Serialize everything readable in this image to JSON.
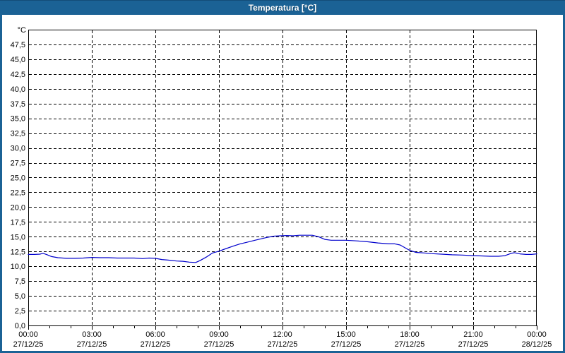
{
  "window": {
    "title": "Temperatura [°C]"
  },
  "colors": {
    "frame": "#1b6295",
    "titlebar_text": "#ffffff",
    "plot_background": "#ffffff",
    "grid": "#000000",
    "axis": "#000000",
    "series_line": "#0000cc"
  },
  "chart_data": {
    "type": "line",
    "title": "Temperatura [°C]",
    "ylabel": "°C",
    "xlabel": "",
    "ylim": [
      0,
      50
    ],
    "y_tick_step": 2.5,
    "y_tick_labels": [
      "0,0",
      "2,5",
      "5,0",
      "7,5",
      "10,0",
      "12,5",
      "15,0",
      "17,5",
      "20,0",
      "22,5",
      "25,0",
      "27,5",
      "30,0",
      "32,5",
      "35,0",
      "37,5",
      "40,0",
      "42,5",
      "45,0",
      "47,5"
    ],
    "x_hours_range": [
      0,
      24
    ],
    "x_minor_tick_every_hours": 1,
    "x_major_ticks": [
      {
        "hour": 0,
        "time": "00:00",
        "date": "27/12/25"
      },
      {
        "hour": 3,
        "time": "03:00",
        "date": "27/12/25"
      },
      {
        "hour": 6,
        "time": "06:00",
        "date": "27/12/25"
      },
      {
        "hour": 9,
        "time": "09:00",
        "date": "27/12/25"
      },
      {
        "hour": 12,
        "time": "12:00",
        "date": "27/12/25"
      },
      {
        "hour": 15,
        "time": "15:00",
        "date": "27/12/25"
      },
      {
        "hour": 18,
        "time": "18:00",
        "date": "27/12/25"
      },
      {
        "hour": 21,
        "time": "21:00",
        "date": "27/12/25"
      },
      {
        "hour": 24,
        "time": "00:00",
        "date": "28/12/25"
      }
    ],
    "grid": "dashed",
    "legend_position": "none",
    "series": [
      {
        "name": "Temperatura",
        "color": "#0000cc",
        "points": [
          [
            0.0,
            12.0
          ],
          [
            0.3,
            12.0
          ],
          [
            0.55,
            12.05
          ],
          [
            0.7,
            12.2
          ],
          [
            0.9,
            11.95
          ],
          [
            1.1,
            11.65
          ],
          [
            1.4,
            11.45
          ],
          [
            1.8,
            11.35
          ],
          [
            2.2,
            11.35
          ],
          [
            2.6,
            11.4
          ],
          [
            3.0,
            11.5
          ],
          [
            3.4,
            11.45
          ],
          [
            3.8,
            11.45
          ],
          [
            4.2,
            11.4
          ],
          [
            4.6,
            11.4
          ],
          [
            5.0,
            11.4
          ],
          [
            5.4,
            11.3
          ],
          [
            5.7,
            11.4
          ],
          [
            6.0,
            11.35
          ],
          [
            6.3,
            11.15
          ],
          [
            6.6,
            11.05
          ],
          [
            7.0,
            10.9
          ],
          [
            7.3,
            10.85
          ],
          [
            7.6,
            10.7
          ],
          [
            7.9,
            10.65
          ],
          [
            8.1,
            10.95
          ],
          [
            8.4,
            11.55
          ],
          [
            8.7,
            12.25
          ],
          [
            9.0,
            12.55
          ],
          [
            9.3,
            12.95
          ],
          [
            9.7,
            13.45
          ],
          [
            10.0,
            13.8
          ],
          [
            10.3,
            14.05
          ],
          [
            10.7,
            14.4
          ],
          [
            11.0,
            14.65
          ],
          [
            11.3,
            14.9
          ],
          [
            11.6,
            15.1
          ],
          [
            11.9,
            15.15
          ],
          [
            12.2,
            15.2
          ],
          [
            12.5,
            15.15
          ],
          [
            12.8,
            15.25
          ],
          [
            13.1,
            15.25
          ],
          [
            13.4,
            15.25
          ],
          [
            13.7,
            15.0
          ],
          [
            14.0,
            14.55
          ],
          [
            14.3,
            14.4
          ],
          [
            14.7,
            14.4
          ],
          [
            15.0,
            14.4
          ],
          [
            15.5,
            14.3
          ],
          [
            16.0,
            14.15
          ],
          [
            16.5,
            13.95
          ],
          [
            16.8,
            13.85
          ],
          [
            17.0,
            13.8
          ],
          [
            17.3,
            13.8
          ],
          [
            17.55,
            13.6
          ],
          [
            17.75,
            13.2
          ],
          [
            18.0,
            12.7
          ],
          [
            18.3,
            12.35
          ],
          [
            18.7,
            12.25
          ],
          [
            19.0,
            12.15
          ],
          [
            19.5,
            12.05
          ],
          [
            20.0,
            11.95
          ],
          [
            20.5,
            11.9
          ],
          [
            21.0,
            11.8
          ],
          [
            21.4,
            11.75
          ],
          [
            21.8,
            11.7
          ],
          [
            22.2,
            11.7
          ],
          [
            22.5,
            11.8
          ],
          [
            22.8,
            12.2
          ],
          [
            22.95,
            12.3
          ],
          [
            23.2,
            12.1
          ],
          [
            23.5,
            12.0
          ],
          [
            23.75,
            12.0
          ],
          [
            24.0,
            12.1
          ]
        ]
      }
    ]
  }
}
